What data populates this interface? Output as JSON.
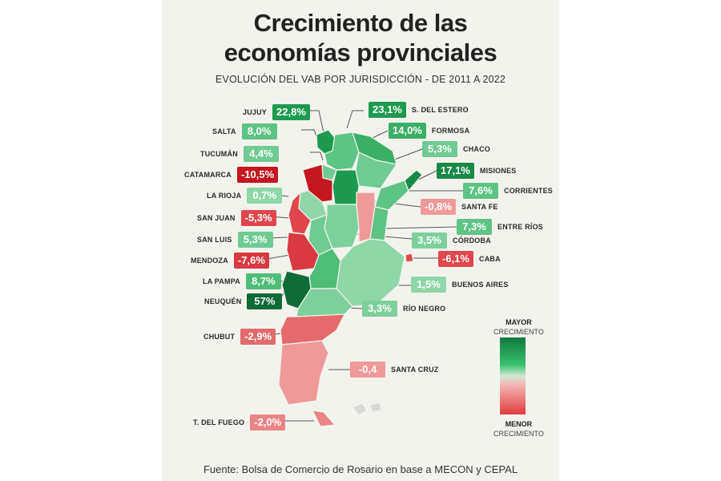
{
  "title_line1": "Crecimiento de las",
  "title_line2": "economías provinciales",
  "subtitle": "EVOLUCIÓN DEL VAB POR JURISDICCIÓN - DE 2011 A 2022",
  "legend": {
    "top_strong": "MAYOR",
    "top_sub": "CRECIMIENTO",
    "bottom_strong": "MENOR",
    "bottom_sub": "CRECIMIENTO"
  },
  "source": "Fuente: Bolsa de Comercio de Rosario en base a MECON y CEPAL",
  "colors": {
    "dark_green": "#0f7a3f",
    "green": "#2fa85c",
    "light_green": "#5ec486",
    "pale_green": "#8fd6a9",
    "pale_red": "#ef9a9a",
    "red": "#e0474c",
    "dark_red": "#c4171e"
  },
  "provinces": [
    {
      "name": "JUJUY",
      "value": "22,8%",
      "color": "#1e9a50",
      "side": "left"
    },
    {
      "name": "SALTA",
      "value": "8,0%",
      "color": "#5ec486",
      "side": "left"
    },
    {
      "name": "TUCUMÁN",
      "value": "4,4%",
      "color": "#6fcb93",
      "side": "left"
    },
    {
      "name": "CATAMARCA",
      "value": "-10,5%",
      "color": "#c4171e",
      "side": "left"
    },
    {
      "name": "LA RIOJA",
      "value": "0,7%",
      "color": "#8fd6a9",
      "side": "left"
    },
    {
      "name": "SAN JUAN",
      "value": "-5,3%",
      "color": "#e0474c",
      "side": "left"
    },
    {
      "name": "SAN LUIS",
      "value": "5,3%",
      "color": "#6fcb93",
      "side": "left"
    },
    {
      "name": "MENDOZA",
      "value": "-7,6%",
      "color": "#d93a3f",
      "side": "left"
    },
    {
      "name": "LA PAMPA",
      "value": "8,7%",
      "color": "#4fbd79",
      "side": "left"
    },
    {
      "name": "NEUQUÉN",
      "value": "57%",
      "color": "#0f6b38",
      "side": "left"
    },
    {
      "name": "CHUBUT",
      "value": "-2,9%",
      "color": "#e46a6c",
      "side": "left"
    },
    {
      "name": "T. DEL FUEGO",
      "value": "-2,0%",
      "color": "#ea8587",
      "side": "left"
    },
    {
      "name": "S. DEL ESTERO",
      "value": "23,1%",
      "color": "#1e9a50",
      "side": "right"
    },
    {
      "name": "FORMOSA",
      "value": "14,0%",
      "color": "#39b066",
      "side": "right"
    },
    {
      "name": "CHACO",
      "value": "5,3%",
      "color": "#6fcb93",
      "side": "right"
    },
    {
      "name": "MISIONES",
      "value": "17,1%",
      "color": "#178a47",
      "side": "right"
    },
    {
      "name": "CORRIENTES",
      "value": "7,6%",
      "color": "#5ec486",
      "side": "right"
    },
    {
      "name": "SANTA FE",
      "value": "-0,8%",
      "color": "#ef9a9a",
      "side": "right"
    },
    {
      "name": "ENTRE RÍOS",
      "value": "7,3%",
      "color": "#5ec486",
      "side": "right"
    },
    {
      "name": "CÓRDOBA",
      "value": "3,5%",
      "color": "#7dd09d",
      "side": "right"
    },
    {
      "name": "CABA",
      "value": "-6,1%",
      "color": "#e0474c",
      "side": "right"
    },
    {
      "name": "BUENOS AIRES",
      "value": "1,5%",
      "color": "#8fd6a9",
      "side": "right"
    },
    {
      "name": "RÍO NEGRO",
      "value": "3,3%",
      "color": "#7dd09d",
      "side": "right"
    },
    {
      "name": "SANTA CRUZ",
      "value": "-0,4",
      "color": "#ef9a9a",
      "side": "right"
    }
  ]
}
